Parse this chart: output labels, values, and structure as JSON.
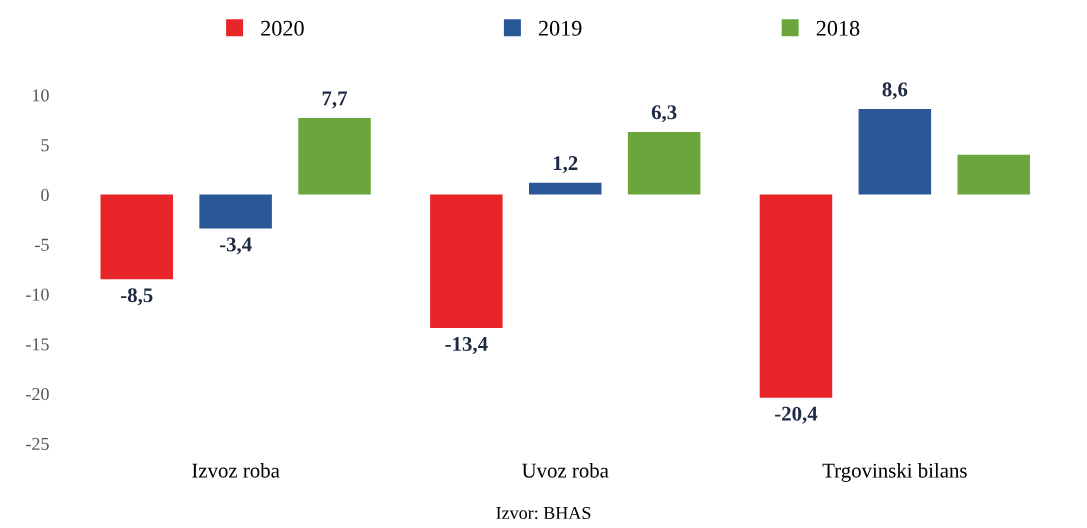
{
  "chart_data": {
    "type": "bar",
    "categories": [
      "Izvoz roba",
      "Uvoz roba",
      "Trgovinski bilans"
    ],
    "series": [
      {
        "name": "2020",
        "color": "#e8262a",
        "values": [
          -8.5,
          -13.4,
          -20.4
        ],
        "value_labels": [
          "-8,5",
          "-13,4",
          "-20,4"
        ]
      },
      {
        "name": "2019",
        "color": "#2a5795",
        "values": [
          -3.4,
          1.2,
          8.6
        ],
        "value_labels": [
          "-3,4",
          "1,2",
          "8,6"
        ]
      },
      {
        "name": "2018",
        "color": "#6aa63c",
        "values": [
          7.7,
          6.3,
          4.0
        ],
        "value_labels": [
          "7,7",
          "6,3",
          null
        ]
      }
    ],
    "ylim": [
      -25,
      10
    ],
    "yticks": [
      -25,
      -20,
      -15,
      -10,
      -5,
      0,
      5,
      10
    ],
    "grid": false,
    "legend": "top",
    "annotations": [
      "Izvor: BHAS"
    ]
  }
}
